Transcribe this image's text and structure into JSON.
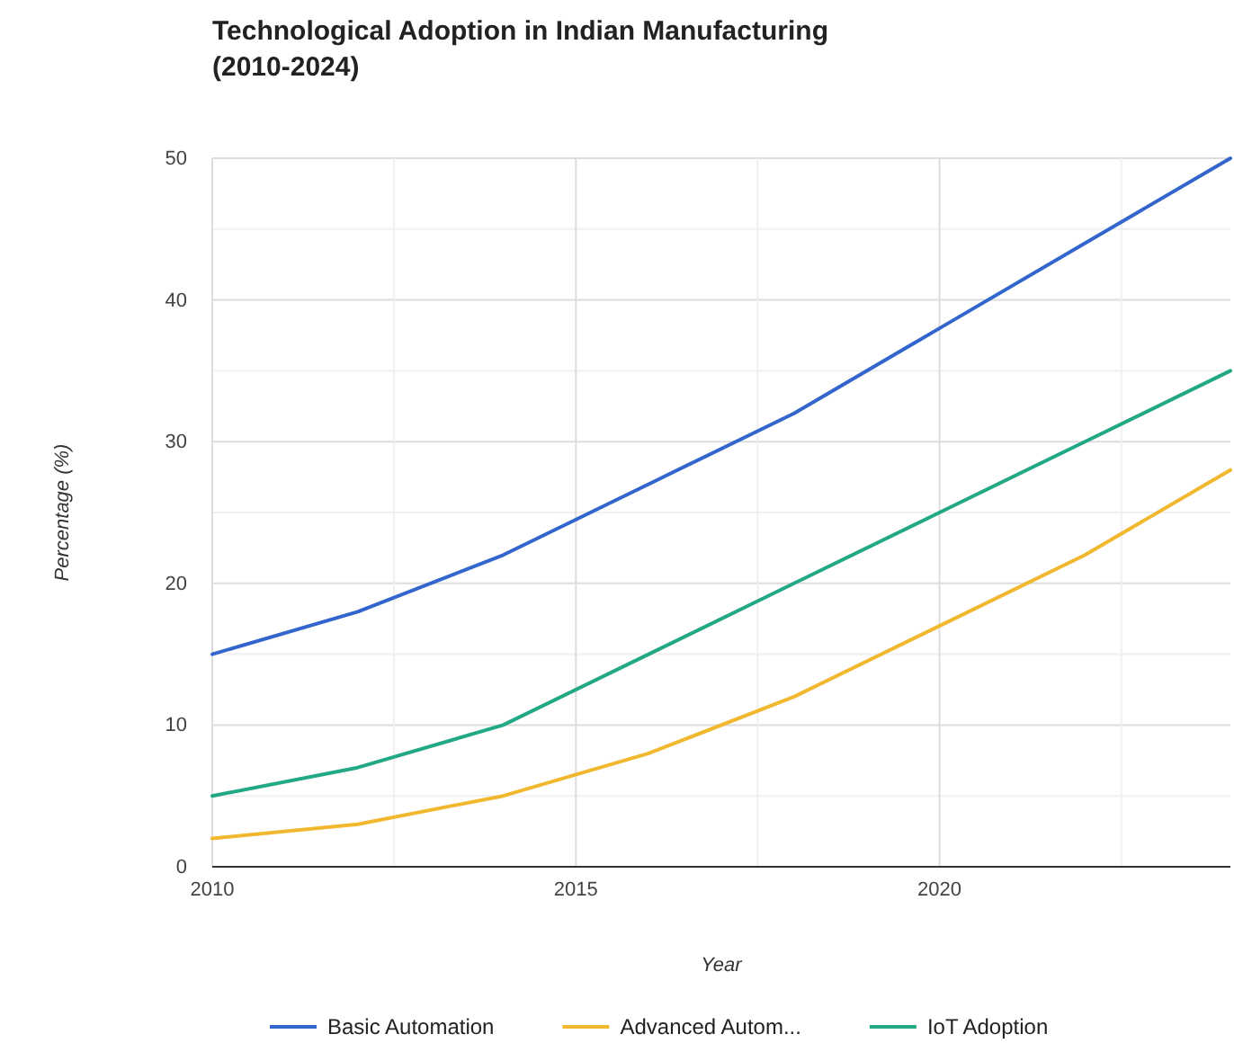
{
  "chart_data": {
    "type": "line",
    "title": "Technological Adoption in Indian Manufacturing (2010-2024)",
    "xlabel": "Year",
    "ylabel": "Percentage (%)",
    "x": [
      2010,
      2012,
      2014,
      2016,
      2018,
      2020,
      2022,
      2024
    ],
    "series": [
      {
        "name": "Basic Automation",
        "color": "#3366cc",
        "values": [
          15,
          18,
          22,
          27,
          32,
          38,
          44,
          50
        ]
      },
      {
        "name": "Advanced Autom...",
        "color": "#f1b72e",
        "values": [
          2,
          3,
          5,
          8,
          12,
          17,
          22,
          28
        ]
      },
      {
        "name": "IoT Adoption",
        "color": "#22a884",
        "values": [
          5,
          7,
          10,
          15,
          20,
          25,
          30,
          35
        ]
      }
    ],
    "xlim": [
      2010,
      2024
    ],
    "xticks": [
      2010,
      {
        "value": 2012.5,
        "label": null
      },
      2015,
      {
        "value": 2017.5,
        "label": null
      },
      2020,
      {
        "value": 2022.5,
        "label": null
      }
    ],
    "ylim": [
      0,
      50
    ],
    "yticks": [
      0,
      {
        "value": 5,
        "label": null
      },
      10,
      {
        "value": 15,
        "label": null
      },
      20,
      {
        "value": 25,
        "label": null
      },
      30,
      {
        "value": 35,
        "label": null
      },
      40,
      {
        "value": 45,
        "label": null
      },
      50
    ],
    "grid": true,
    "legend": "bottom",
    "marker": "none",
    "line_style": "solid"
  }
}
